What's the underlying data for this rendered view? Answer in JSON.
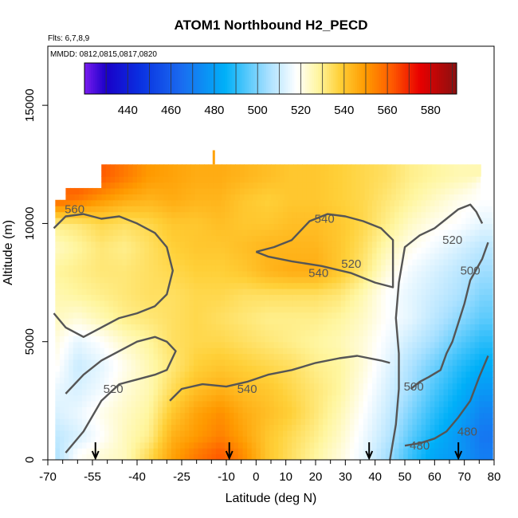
{
  "chart_data": {
    "type": "heatmap",
    "title": "ATOM1 Northbound H2_PECD",
    "flights_note": "Flts: 6,7,8,9",
    "dates_note": "MMDD: 0812,0815,0817,0820",
    "xlabel": "Latitude (deg N)",
    "ylabel": "Altitude (m)",
    "xlim": [
      -70,
      80
    ],
    "ylim": [
      0,
      17500
    ],
    "x_ticks": [
      -70,
      -55,
      -40,
      -25,
      -10,
      0,
      10,
      20,
      30,
      40,
      50,
      60,
      70,
      80
    ],
    "x_minor_ticks": [
      -65,
      -60,
      -50,
      -45,
      -35,
      -30,
      -20,
      -15,
      -5,
      5,
      15,
      25,
      35,
      45,
      55,
      65,
      75
    ],
    "y_ticks": [
      0,
      5000,
      10000,
      15000
    ],
    "colorbar": {
      "range": [
        420,
        592
      ],
      "tick_labels": [
        440,
        460,
        480,
        500,
        520,
        540,
        560,
        580
      ],
      "colors": [
        "#7a1cf0",
        "#1a00c8",
        "#0a2ee0",
        "#1a6cf0",
        "#00b0f8",
        "#a8e0ff",
        "#ffffff",
        "#fff6a0",
        "#ffd038",
        "#ff9a00",
        "#ff5a00",
        "#e80000",
        "#8a1010"
      ],
      "color_stops": [
        420,
        430,
        445,
        465,
        485,
        505,
        518,
        528,
        538,
        550,
        562,
        575,
        592
      ]
    },
    "field_grid": {
      "lat": [
        -68,
        -60,
        -52,
        -44,
        -36,
        -28,
        -20,
        -12,
        -4,
        4,
        12,
        20,
        28,
        36,
        44,
        52,
        60,
        68,
        76
      ],
      "alt": [
        250,
        1000,
        2000,
        3000,
        4000,
        5000,
        6000,
        7000,
        8000,
        9000,
        10000,
        11000,
        12000
      ],
      "values": [
        [
          505,
          518,
          522,
          525,
          535,
          548,
          556,
          562,
          552,
          540,
          534,
          528,
          522,
          515,
          505,
          492,
          482,
          478,
          470
        ],
        [
          508,
          512,
          518,
          525,
          530,
          545,
          550,
          555,
          548,
          540,
          535,
          530,
          524,
          516,
          508,
          496,
          486,
          478,
          468
        ],
        [
          512,
          515,
          520,
          524,
          528,
          540,
          548,
          552,
          546,
          542,
          538,
          532,
          526,
          518,
          510,
          500,
          490,
          482,
          472
        ],
        [
          515,
          512,
          516,
          522,
          526,
          535,
          542,
          545,
          542,
          540,
          536,
          532,
          528,
          520,
          512,
          504,
          494,
          486,
          478
        ],
        [
          520,
          510,
          514,
          520,
          526,
          532,
          538,
          540,
          538,
          536,
          534,
          530,
          528,
          522,
          514,
          506,
          498,
          490,
          484
        ],
        [
          522,
          514,
          518,
          524,
          528,
          534,
          536,
          536,
          534,
          532,
          530,
          528,
          526,
          522,
          516,
          510,
          504,
          496,
          490
        ],
        [
          525,
          522,
          526,
          530,
          532,
          534,
          536,
          534,
          532,
          530,
          530,
          530,
          528,
          524,
          518,
          514,
          508,
          502,
          496
        ],
        [
          526,
          528,
          530,
          532,
          534,
          534,
          536,
          536,
          534,
          534,
          534,
          534,
          532,
          526,
          518,
          514,
          510,
          506,
          500
        ],
        [
          528,
          530,
          532,
          532,
          534,
          536,
          538,
          538,
          540,
          544,
          546,
          546,
          540,
          532,
          522,
          516,
          512,
          508,
          504
        ],
        [
          524,
          528,
          532,
          530,
          534,
          538,
          540,
          540,
          542,
          544,
          544,
          544,
          540,
          534,
          526,
          520,
          516,
          512,
          508
        ],
        [
          530,
          532,
          536,
          534,
          536,
          540,
          540,
          542,
          540,
          540,
          542,
          542,
          540,
          536,
          530,
          524,
          520,
          518,
          514
        ],
        [
          560,
          556,
          550,
          546,
          544,
          546,
          544,
          544,
          540,
          538,
          540,
          540,
          538,
          536,
          532,
          528,
          524,
          520,
          518
        ],
        [
          null,
          566,
          562,
          556,
          550,
          548,
          546,
          546,
          544,
          542,
          540,
          540,
          538,
          536,
          534,
          530,
          528,
          526,
          null
        ]
      ]
    },
    "contour_levels": [
      480,
      500,
      520,
      540
    ],
    "contour_labels": [
      {
        "text": "560",
        "lat": -61,
        "alt": 10600
      },
      {
        "text": "540",
        "lat": 23,
        "alt": 10200
      },
      {
        "text": "520",
        "lat": 32,
        "alt": 8300
      },
      {
        "text": "540",
        "lat": 21,
        "alt": 7900
      },
      {
        "text": "520",
        "lat": 66,
        "alt": 9300
      },
      {
        "text": "500",
        "lat": 72,
        "alt": 8000
      },
      {
        "text": "520",
        "lat": -48,
        "alt": 3000
      },
      {
        "text": "540",
        "lat": -3,
        "alt": 3000
      },
      {
        "text": "500",
        "lat": 53,
        "alt": 3100
      },
      {
        "text": "480",
        "lat": 55,
        "alt": 600
      },
      {
        "text": "480",
        "lat": 71,
        "alt": 1200
      }
    ],
    "contour_lines_alt_m": {
      "c540_lower": {
        "lat": [
          -29,
          -25,
          -18,
          -10,
          -3,
          4,
          12,
          20,
          28,
          34,
          38,
          42,
          45
        ],
        "alt": [
          2500,
          3000,
          3200,
          3100,
          3300,
          3600,
          3800,
          4100,
          4300,
          4400,
          4300,
          4200,
          4100
        ]
      },
      "c540_upper": {
        "lat": [
          0,
          6,
          12,
          18,
          24,
          30,
          36,
          42,
          46,
          46,
          40,
          32,
          22,
          12,
          4,
          0
        ],
        "alt": [
          8800,
          9000,
          9300,
          10100,
          10400,
          10300,
          10100,
          9800,
          9300,
          7300,
          7500,
          7900,
          8200,
          8400,
          8600,
          8800
        ]
      },
      "c520_west": {
        "lat": [
          -68,
          -64,
          -58,
          -52,
          -46,
          -40,
          -34,
          -30,
          -28,
          -30,
          -34,
          -40,
          -46,
          -52,
          -58,
          -64,
          -68
        ],
        "alt": [
          9800,
          10300,
          10400,
          10200,
          10300,
          10000,
          9600,
          9000,
          8000,
          7000,
          6500,
          6200,
          6000,
          5600,
          5200,
          5600,
          6200
        ]
      },
      "c520_south": {
        "lat": [
          -64,
          -58,
          -52,
          -46,
          -40,
          -34,
          -30,
          -27,
          -30,
          -34,
          -40,
          -46,
          -52,
          -58,
          -64
        ],
        "alt": [
          300,
          1200,
          2500,
          3200,
          3400,
          3600,
          3800,
          4600,
          5000,
          5200,
          5000,
          4600,
          4200,
          3600,
          2800
        ]
      },
      "c520_east": {
        "lat": [
          45,
          47,
          48,
          48,
          47,
          48,
          50,
          55,
          60,
          64,
          68,
          72,
          74,
          76
        ],
        "alt": [
          0,
          1500,
          3000,
          4500,
          6000,
          7500,
          9000,
          9500,
          9800,
          10200,
          10600,
          10800,
          10500,
          10000
        ]
      },
      "c500_east": {
        "lat": [
          52,
          55,
          58,
          62,
          64,
          66,
          68,
          70,
          72,
          76,
          78
        ],
        "alt": [
          3000,
          3300,
          3500,
          3800,
          4500,
          5000,
          5800,
          6600,
          7600,
          8500,
          9200
        ]
      },
      "c480_east": {
        "lat": [
          50,
          55,
          60,
          64,
          68,
          72,
          75,
          78
        ],
        "alt": [
          600,
          700,
          900,
          1200,
          1800,
          2500,
          3500,
          4400
        ]
      }
    },
    "ascent_marker_lats": [
      -54,
      -9,
      38,
      68
    ]
  }
}
